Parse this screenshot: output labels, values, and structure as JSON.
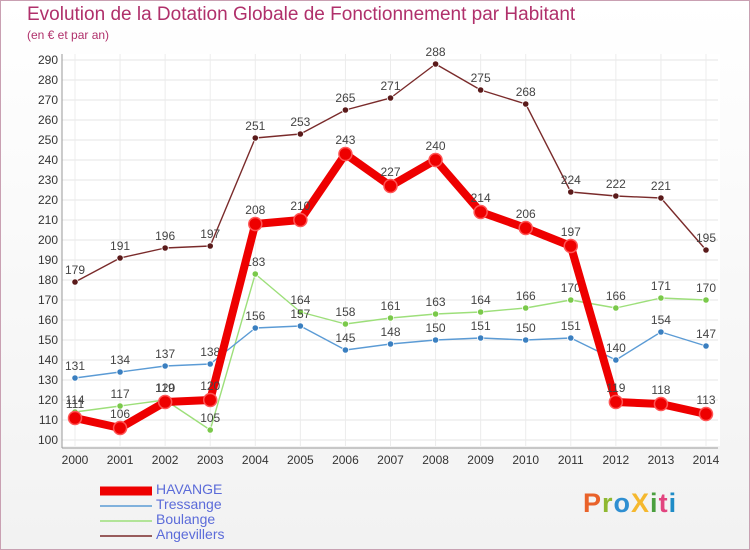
{
  "title": "Evolution de la Dotation Globale de Fonctionnement par Habitant",
  "subtitle": "(en € et par an)",
  "logo": {
    "text": "ProXiti",
    "colors": [
      "#e9622a",
      "#8fb831",
      "#2f8fd1",
      "#f5b82e",
      "#4a9f3e",
      "#e2447f",
      "#1f8cc7"
    ]
  },
  "chart_data": {
    "type": "line",
    "title": "Evolution de la Dotation Globale de Fonctionnement par Habitant",
    "subtitle": "(en € et par an)",
    "xlabel": "",
    "ylabel": "",
    "ylim": [
      100,
      290
    ],
    "yticks": [
      100,
      110,
      120,
      130,
      140,
      150,
      160,
      170,
      180,
      190,
      200,
      210,
      220,
      230,
      240,
      250,
      260,
      270,
      280,
      290
    ],
    "x": [
      "2000",
      "2001",
      "2002",
      "2003",
      "2004",
      "2005",
      "2006",
      "2007",
      "2008",
      "2009",
      "2010",
      "2011",
      "2012",
      "2013",
      "2014"
    ],
    "grid": true,
    "legend": "bottom-left",
    "series": [
      {
        "name": "Angevillers",
        "color": "#7a2b2b",
        "marker": "#5a1a1a",
        "values": [
          179,
          191,
          196,
          197,
          251,
          253,
          265,
          271,
          288,
          275,
          268,
          224,
          222,
          221,
          195
        ]
      },
      {
        "name": "Boulange",
        "color": "#9ddf7a",
        "marker": "#7ac94a",
        "values": [
          114,
          117,
          120,
          105,
          183,
          164,
          158,
          161,
          163,
          164,
          166,
          170,
          166,
          171,
          170
        ]
      },
      {
        "name": "Tressange",
        "color": "#5b9bd5",
        "marker": "#3a7fc0",
        "values": [
          131,
          134,
          137,
          138,
          156,
          157,
          145,
          148,
          150,
          151,
          150,
          151,
          140,
          154,
          147
        ]
      },
      {
        "name": "HAVANGE",
        "color": "#ee0000",
        "marker": "#ee0000",
        "values": [
          111,
          106,
          119,
          120,
          208,
          210,
          243,
          227,
          240,
          214,
          206,
          197,
          119,
          118,
          113
        ]
      }
    ]
  }
}
